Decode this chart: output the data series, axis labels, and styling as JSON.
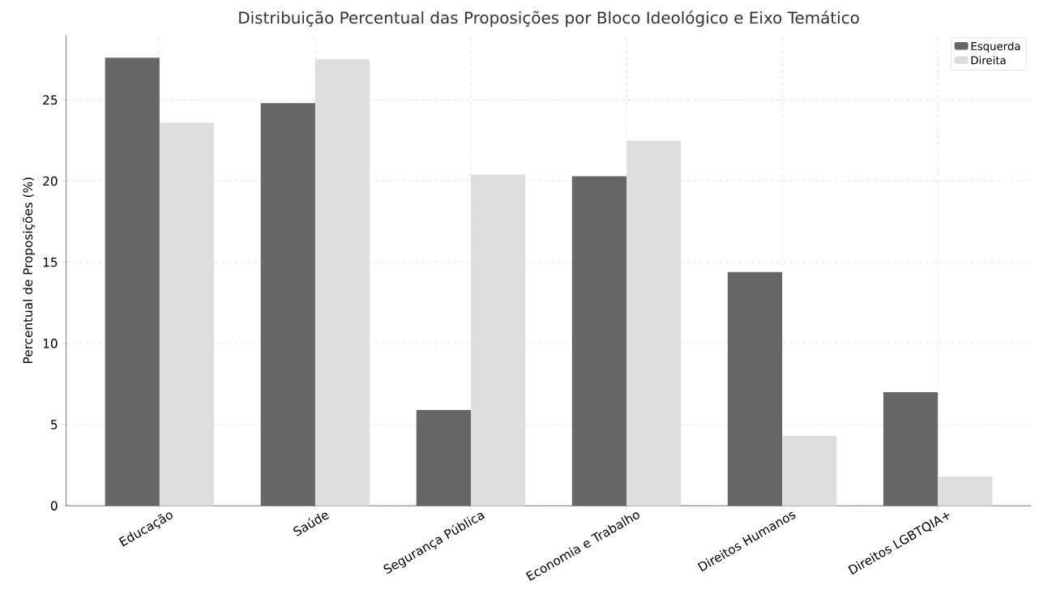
{
  "chart_data": {
    "type": "bar",
    "title": "Distribuição Percentual das Proposições por Bloco Ideológico e Eixo Temático",
    "ylabel": "Percentual de Proposições (%)",
    "categories": [
      "Educação",
      "Saúde",
      "Segurança Pública",
      "Economia e Trabalho",
      "Direitos Humanos",
      "Direitos LGBTQIA+"
    ],
    "series": [
      {
        "name": "Esquerda",
        "color": "#666666",
        "values": [
          27.6,
          24.8,
          5.9,
          20.3,
          14.4,
          7.0
        ]
      },
      {
        "name": "Direita",
        "color": "#dddddd",
        "values": [
          23.6,
          27.5,
          20.4,
          22.5,
          4.3,
          1.8
        ]
      }
    ],
    "ylim": [
      0,
      29
    ],
    "yticks": [
      0,
      5,
      10,
      15,
      20,
      25
    ],
    "grid": true,
    "legend": "top right"
  }
}
